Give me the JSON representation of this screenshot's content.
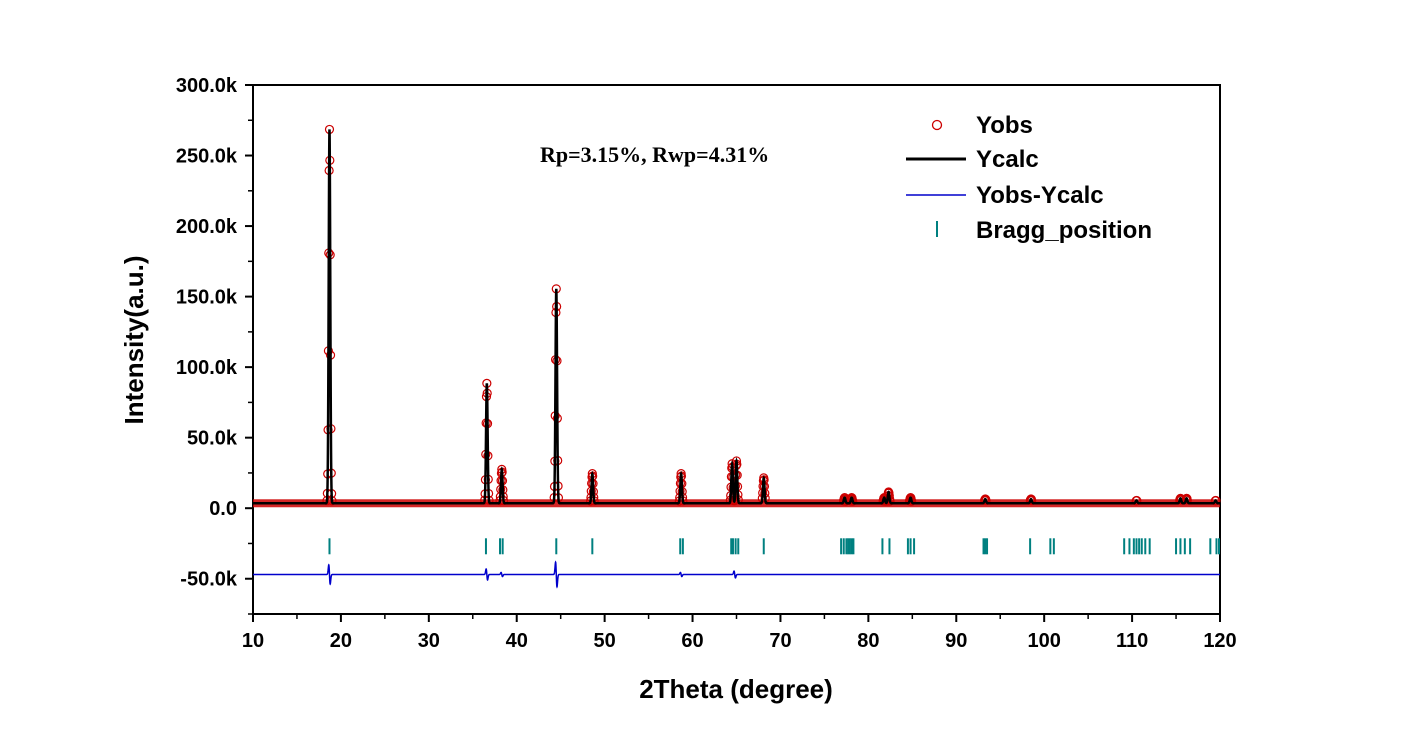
{
  "chart_data": {
    "type": "line",
    "title": "",
    "xlabel": "2Theta (degree)",
    "ylabel": "Intensity(a.u.)",
    "xlim": [
      10,
      120
    ],
    "ylim": [
      -75000,
      300000
    ],
    "x_ticks": [
      10,
      20,
      30,
      40,
      50,
      60,
      70,
      80,
      90,
      100,
      110,
      120
    ],
    "x_tick_labels": [
      "10",
      "20",
      "30",
      "40",
      "50",
      "60",
      "70",
      "80",
      "90",
      "100",
      "110",
      "120"
    ],
    "y_ticks": [
      -50000,
      0,
      50000,
      100000,
      150000,
      200000,
      250000,
      300000
    ],
    "y_tick_labels": [
      "-50.0k",
      "0.0",
      "50.0k",
      "100.0k",
      "150.0k",
      "200.0k",
      "250.0k",
      "300.0k"
    ],
    "annotation": "Rp=3.15%, Rwp=4.31%",
    "legend_position": "top-right",
    "background_level": 3500,
    "peaks": [
      {
        "x": 18.7,
        "height": 265000
      },
      {
        "x": 36.6,
        "height": 85000
      },
      {
        "x": 38.3,
        "height": 24000
      },
      {
        "x": 44.5,
        "height": 152000
      },
      {
        "x": 48.6,
        "height": 21000
      },
      {
        "x": 58.7,
        "height": 21000
      },
      {
        "x": 64.5,
        "height": 28000
      },
      {
        "x": 65.0,
        "height": 30000
      },
      {
        "x": 68.1,
        "height": 18000
      },
      {
        "x": 77.3,
        "height": 4000
      },
      {
        "x": 78.1,
        "height": 4000
      },
      {
        "x": 81.8,
        "height": 4000
      },
      {
        "x": 82.3,
        "height": 8000
      },
      {
        "x": 84.8,
        "height": 4000
      },
      {
        "x": 93.3,
        "height": 3000
      },
      {
        "x": 98.5,
        "height": 3000
      },
      {
        "x": 110.5,
        "height": 2000
      },
      {
        "x": 115.5,
        "height": 3500
      },
      {
        "x": 116.2,
        "height": 3500
      },
      {
        "x": 119.5,
        "height": 2000
      }
    ],
    "residual_offset": -47000,
    "residual_spikes": [
      {
        "x": 18.7,
        "amplitude": 7000
      },
      {
        "x": 36.6,
        "amplitude": 4000
      },
      {
        "x": 38.3,
        "amplitude": 1500
      },
      {
        "x": 44.5,
        "amplitude": 9000
      },
      {
        "x": 58.7,
        "amplitude": 1500
      },
      {
        "x": 64.8,
        "amplitude": 2500
      }
    ],
    "bragg_y": -27000,
    "bragg_positions": [
      18.7,
      36.5,
      38.1,
      38.4,
      44.5,
      48.6,
      58.6,
      58.9,
      64.4,
      64.6,
      64.9,
      65.2,
      68.1,
      76.9,
      77.2,
      77.5,
      77.7,
      77.9,
      78.1,
      78.3,
      81.6,
      82.4,
      84.5,
      84.8,
      85.2,
      93.1,
      93.3,
      93.5,
      98.4,
      100.7,
      101.1,
      109.1,
      109.7,
      110.2,
      110.5,
      110.8,
      111.1,
      111.5,
      112.0,
      115.0,
      115.5,
      116.0,
      116.6,
      118.9,
      119.6,
      120.0
    ],
    "series": [
      {
        "name": "Yobs",
        "kind": "markers",
        "color": "#cc0000"
      },
      {
        "name": "Ycalc",
        "kind": "line",
        "color": "#000000"
      },
      {
        "name": "Yobs-Ycalc",
        "kind": "line",
        "color": "#0000cc"
      },
      {
        "name": "Bragg_position",
        "kind": "ticks",
        "color": "#008080"
      }
    ]
  }
}
